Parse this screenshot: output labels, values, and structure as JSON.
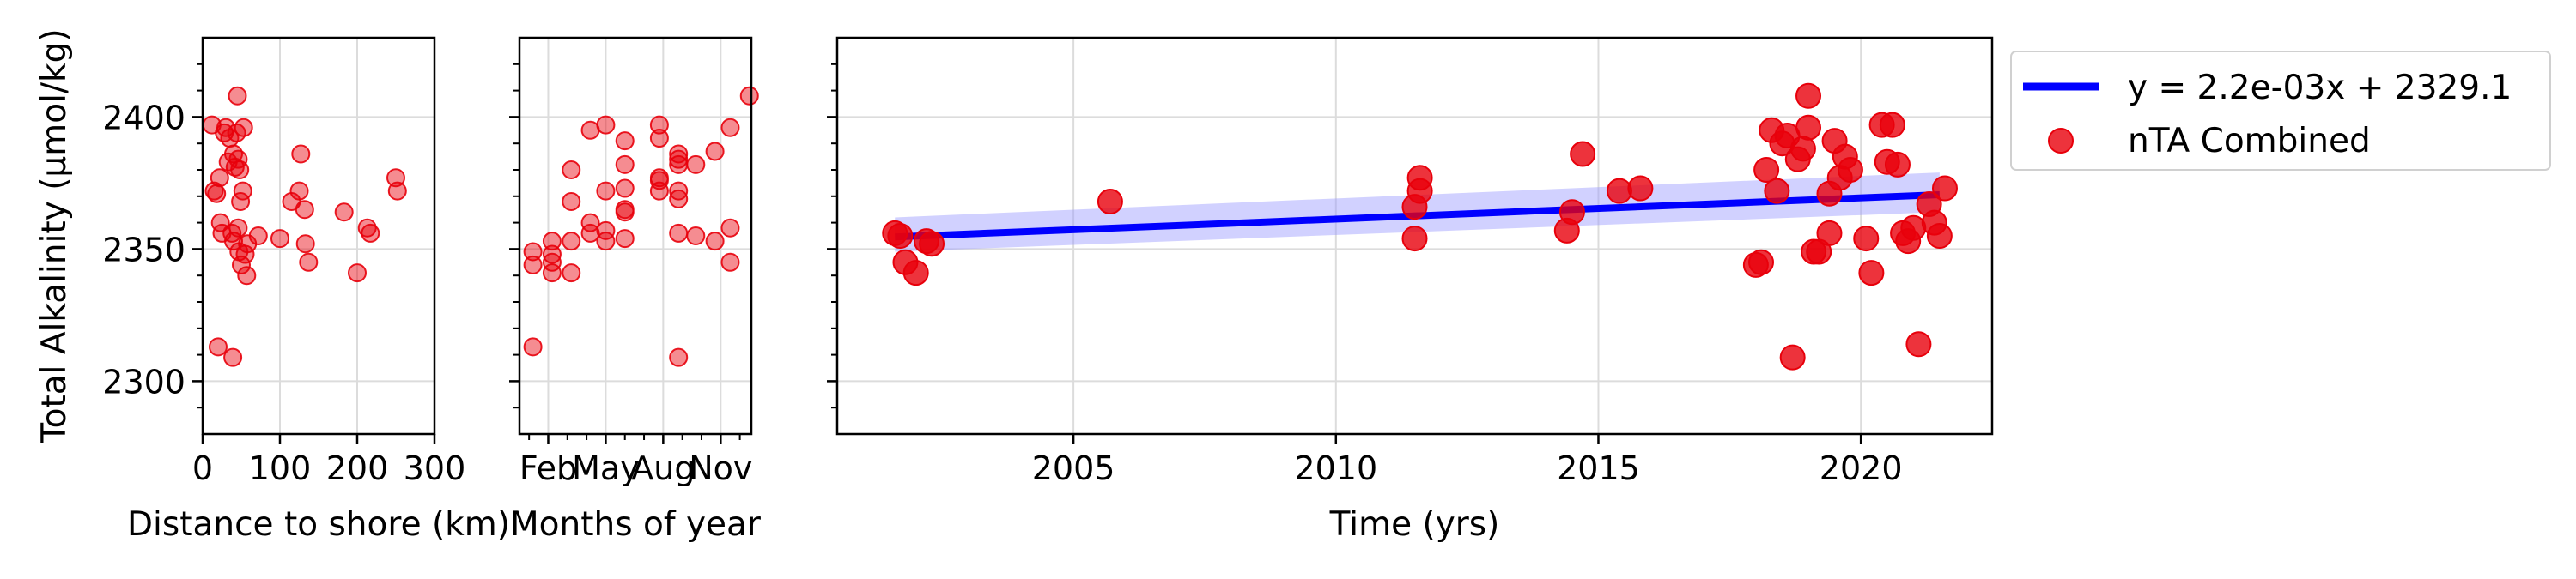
{
  "chart_data": [
    {
      "type": "scatter",
      "xlabel": "Distance to shore (km)",
      "ylabel": "Total Alkalinity (μmol/kg)",
      "xlim": [
        0,
        300
      ],
      "ylim": [
        2280,
        2430
      ],
      "x_ticks": [
        0,
        100,
        200,
        300
      ],
      "x_tick_labels": [
        "0",
        "100",
        "200",
        "300"
      ],
      "y_ticks": [
        2300,
        2350,
        2400
      ],
      "y_tick_labels": [
        "2300",
        "2350",
        "2400"
      ],
      "grid": true,
      "color": "#e8000b",
      "points": [
        [
          12,
          2397
        ],
        [
          15,
          2372
        ],
        [
          18,
          2371
        ],
        [
          22,
          2377
        ],
        [
          23,
          2360
        ],
        [
          25,
          2356
        ],
        [
          20,
          2313
        ],
        [
          28,
          2394
        ],
        [
          30,
          2396
        ],
        [
          33,
          2383
        ],
        [
          35,
          2392
        ],
        [
          38,
          2356
        ],
        [
          39,
          2309
        ],
        [
          40,
          2386
        ],
        [
          40,
          2353
        ],
        [
          42,
          2381
        ],
        [
          44,
          2394
        ],
        [
          45,
          2408
        ],
        [
          46,
          2384
        ],
        [
          46,
          2358
        ],
        [
          47,
          2349
        ],
        [
          48,
          2380
        ],
        [
          49,
          2368
        ],
        [
          50,
          2344
        ],
        [
          52,
          2372
        ],
        [
          53,
          2396
        ],
        [
          55,
          2348
        ],
        [
          57,
          2340
        ],
        [
          58,
          2352
        ],
        [
          72,
          2355
        ],
        [
          100,
          2354
        ],
        [
          115,
          2368
        ],
        [
          125,
          2372
        ],
        [
          127,
          2386
        ],
        [
          132,
          2365
        ],
        [
          133,
          2352
        ],
        [
          137,
          2345
        ],
        [
          183,
          2364
        ],
        [
          200,
          2341
        ],
        [
          213,
          2358
        ],
        [
          217,
          2356
        ],
        [
          250,
          2377
        ],
        [
          252,
          2372
        ]
      ]
    },
    {
      "type": "scatter",
      "xlabel": "Months of year",
      "xlim": [
        0.5,
        12.6
      ],
      "ylim": [
        2280,
        2430
      ],
      "x_ticks": [
        2,
        5,
        8,
        11
      ],
      "x_tick_labels": [
        "Feb",
        "May",
        "Aug",
        "Nov"
      ],
      "y_ticks": [
        2300,
        2350,
        2400
      ],
      "grid": true,
      "color": "#e8000b",
      "points": [
        [
          1.2,
          2349
        ],
        [
          1.2,
          2344
        ],
        [
          1.2,
          2313
        ],
        [
          2.2,
          2353
        ],
        [
          2.2,
          2348
        ],
        [
          2.2,
          2345
        ],
        [
          2.2,
          2341
        ],
        [
          3.2,
          2380
        ],
        [
          3.2,
          2368
        ],
        [
          3.2,
          2353
        ],
        [
          3.2,
          2341
        ],
        [
          4.2,
          2395
        ],
        [
          4.2,
          2360
        ],
        [
          4.2,
          2356
        ],
        [
          5.0,
          2397
        ],
        [
          5.0,
          2372
        ],
        [
          5.0,
          2357
        ],
        [
          5.0,
          2353
        ],
        [
          6.0,
          2391
        ],
        [
          6.0,
          2382
        ],
        [
          6.0,
          2373
        ],
        [
          6.0,
          2365
        ],
        [
          6.0,
          2364
        ],
        [
          6.0,
          2354
        ],
        [
          7.8,
          2397
        ],
        [
          7.8,
          2392
        ],
        [
          7.8,
          2377
        ],
        [
          7.8,
          2376
        ],
        [
          7.8,
          2372
        ],
        [
          8.8,
          2386
        ],
        [
          8.8,
          2384
        ],
        [
          8.8,
          2382
        ],
        [
          8.8,
          2372
        ],
        [
          8.8,
          2369
        ],
        [
          8.8,
          2309
        ],
        [
          8.8,
          2356
        ],
        [
          9.7,
          2382
        ],
        [
          9.7,
          2355
        ],
        [
          10.7,
          2387
        ],
        [
          10.7,
          2353
        ],
        [
          11.5,
          2396
        ],
        [
          11.5,
          2358
        ],
        [
          11.5,
          2345
        ],
        [
          12.5,
          2408
        ]
      ]
    },
    {
      "type": "scatter",
      "xlabel": "Time (yrs)",
      "xlim": [
        2000.5,
        2022.5
      ],
      "ylim": [
        2280,
        2430
      ],
      "x_ticks": [
        2005,
        2010,
        2015,
        2020
      ],
      "x_tick_labels": [
        "2005",
        "2010",
        "2015",
        "2020"
      ],
      "y_ticks": [
        2300,
        2350,
        2400
      ],
      "grid": true,
      "legend": "upper right, outside",
      "series": [
        {
          "name": "y = 2.2e-03x + 2329.1",
          "kind": "line",
          "color": "#0000ff",
          "x": [
            2001.6,
            2021.5
          ],
          "y": [
            2354.6,
            2370.6
          ],
          "ci_band": {
            "color": "#9999ff",
            "x": [
              2001.6,
              2021.5
            ],
            "lower": [
              2349.0,
              2364.0
            ],
            "upper": [
              2362.0,
              2379.0
            ]
          }
        },
        {
          "name": "nTA Combined",
          "kind": "scatter",
          "color": "#e8000b",
          "points": [
            [
              2001.6,
              2356
            ],
            [
              2001.7,
              2355
            ],
            [
              2001.8,
              2345
            ],
            [
              2002.0,
              2341
            ],
            [
              2002.2,
              2353
            ],
            [
              2002.3,
              2352
            ],
            [
              2005.7,
              2368
            ],
            [
              2011.5,
              2354
            ],
            [
              2011.5,
              2366
            ],
            [
              2011.6,
              2372
            ],
            [
              2011.6,
              2377
            ],
            [
              2014.4,
              2357
            ],
            [
              2014.5,
              2364
            ],
            [
              2014.7,
              2386
            ],
            [
              2015.4,
              2372
            ],
            [
              2015.8,
              2373
            ],
            [
              2018.0,
              2344
            ],
            [
              2018.1,
              2345
            ],
            [
              2018.2,
              2380
            ],
            [
              2018.3,
              2395
            ],
            [
              2018.4,
              2372
            ],
            [
              2018.5,
              2390
            ],
            [
              2018.6,
              2393
            ],
            [
              2018.7,
              2309
            ],
            [
              2018.8,
              2384
            ],
            [
              2018.9,
              2388
            ],
            [
              2019.0,
              2396
            ],
            [
              2019.0,
              2408
            ],
            [
              2019.1,
              2349
            ],
            [
              2019.2,
              2349
            ],
            [
              2019.4,
              2356
            ],
            [
              2019.4,
              2371
            ],
            [
              2019.5,
              2391
            ],
            [
              2019.6,
              2377
            ],
            [
              2019.7,
              2385
            ],
            [
              2019.8,
              2380
            ],
            [
              2020.1,
              2354
            ],
            [
              2020.2,
              2341
            ],
            [
              2020.4,
              2397
            ],
            [
              2020.5,
              2383
            ],
            [
              2020.6,
              2397
            ],
            [
              2020.7,
              2382
            ],
            [
              2020.8,
              2356
            ],
            [
              2020.9,
              2353
            ],
            [
              2021.0,
              2358
            ],
            [
              2021.1,
              2314
            ],
            [
              2021.3,
              2367
            ],
            [
              2021.4,
              2360
            ],
            [
              2021.5,
              2355
            ],
            [
              2021.6,
              2373
            ]
          ]
        }
      ]
    }
  ]
}
